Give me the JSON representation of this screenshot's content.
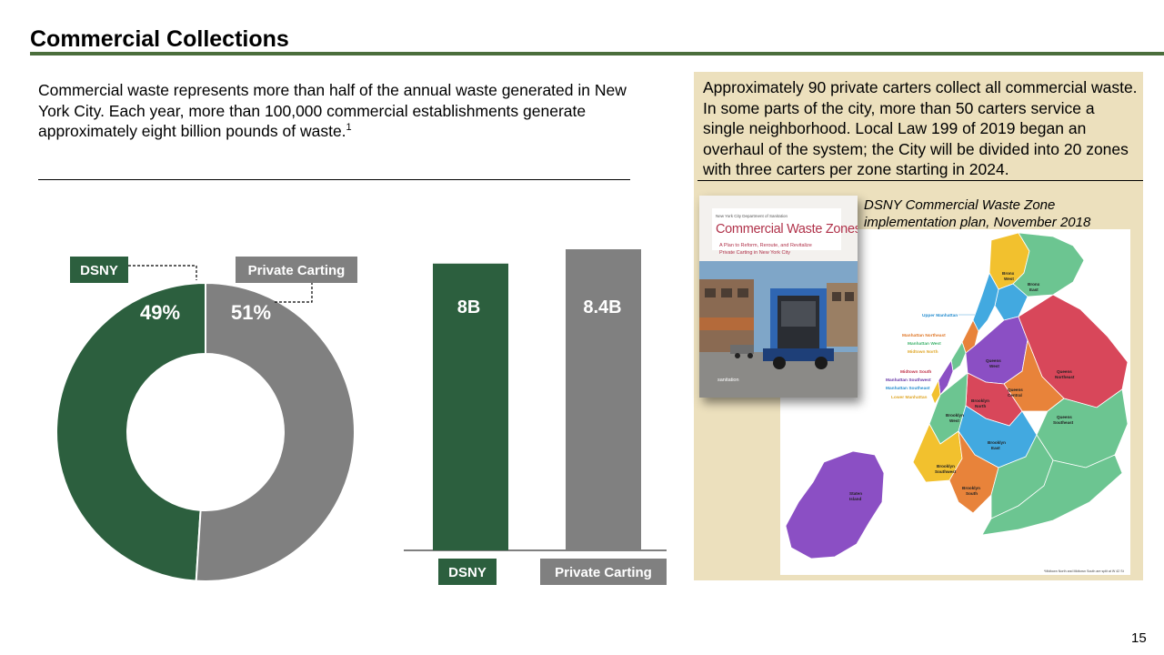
{
  "title": "Commercial Collections",
  "colors": {
    "accent": "#2d6c47",
    "dsny": "#2c5f3e",
    "private": "#808080",
    "panel": "#ece0bd",
    "title_rule": "#4b6e3c"
  },
  "intro": {
    "text": "Commercial waste represents more than half of the annual waste generated in New York City. Each year, more than 100,000 commercial establishments generate approximately eight billion pounds of waste.",
    "footnote": "1"
  },
  "chart_data": [
    {
      "type": "pie",
      "categories": [
        "DSNY",
        "Private Carting"
      ],
      "values": [
        49,
        51
      ],
      "labels": [
        "49%",
        "51%"
      ]
    },
    {
      "type": "bar",
      "categories": [
        "DSNY",
        "Private Carting"
      ],
      "values": [
        8,
        8.4
      ],
      "labels": [
        "8B",
        "8.4B"
      ]
    }
  ],
  "side": {
    "text": "Approximately 90 private carters collect all commercial waste. In some parts of the city, more than 50 carters service a single neighborhood. Local Law 199 of 2019 began an overhaul of the system; the City will be divided into 20 zones with three carters per zone starting in 2024.",
    "caption": "DSNY Commercial Waste Zone implementation plan, November 2018"
  },
  "cover": {
    "dept": "New York City Department of Sanitation",
    "title": "Commercial Waste Zones",
    "subtitle_line1": "A Plan to Reform, Reroute, and Revitalize",
    "subtitle_line2": "Private Carting in New York City",
    "logo": "sanitation"
  },
  "map": {
    "zones": [
      "Bronx West",
      "Bronx East",
      "Upper Manhattan",
      "Manhattan Northeast",
      "Manhattan West",
      "Midtown North",
      "Midtown South",
      "Manhattan Southwest",
      "Manhattan Southeast",
      "Lower Manhattan",
      "Queens West",
      "Queens Northeast",
      "Queens Central",
      "Queens Southeast",
      "Brooklyn North",
      "Brooklyn West",
      "Brooklyn East",
      "Brooklyn Southwest",
      "Brooklyn South",
      "Staten Island"
    ],
    "note": "*Midtown North and Midtown South are split at W 42 St"
  },
  "page_number": "15"
}
